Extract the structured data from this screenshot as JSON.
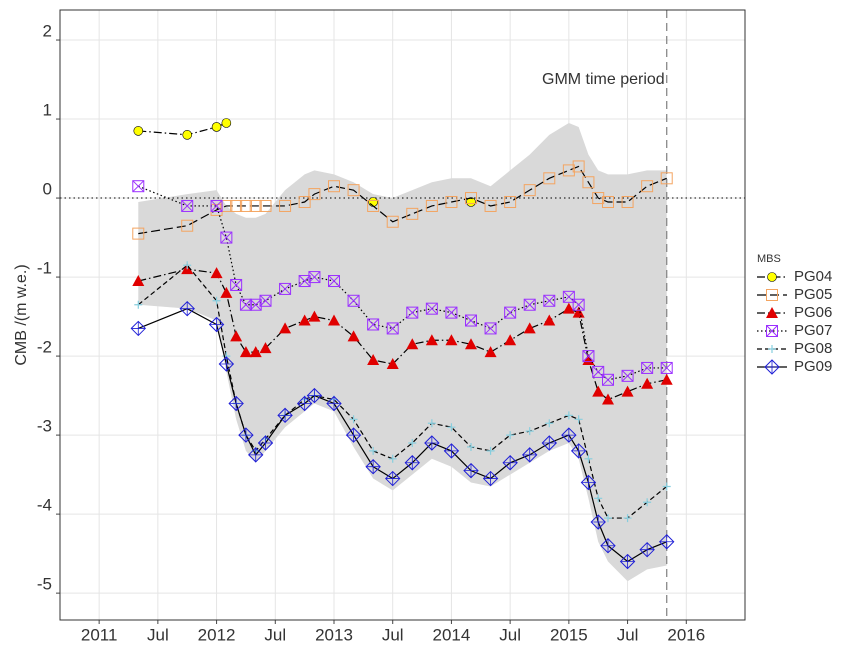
{
  "chart_data": {
    "type": "line",
    "y_label": "CMB /(m w.e.)",
    "legend_title": "MBS",
    "legend_position": "right",
    "x": [
      "2011-05",
      "2011-10",
      "2012-01",
      "2012-02",
      "2012-03",
      "2012-04",
      "2012-05",
      "2012-06",
      "2012-08",
      "2012-10",
      "2012-11",
      "2013-01",
      "2013-03",
      "2013-05",
      "2013-07",
      "2013-09",
      "2013-11",
      "2014-01",
      "2014-03",
      "2014-05",
      "2014-07",
      "2014-09",
      "2014-11",
      "2015-01",
      "2015-02",
      "2015-03",
      "2015-04",
      "2015-05",
      "2015-07",
      "2015-09",
      "2015-11"
    ],
    "band": {
      "color": "#d9d9d9",
      "upper": [
        -0.05,
        0.05,
        0.1,
        -0.1,
        -0.2,
        -0.25,
        -0.25,
        -0.2,
        0.1,
        0.3,
        0.35,
        0.3,
        0.2,
        0.05,
        0.0,
        0.1,
        0.2,
        0.25,
        0.25,
        0.15,
        0.35,
        0.55,
        0.8,
        0.95,
        0.9,
        0.55,
        0.35,
        0.3,
        0.3,
        0.35,
        0.35
      ],
      "lower": [
        -1.35,
        -1.4,
        -1.55,
        -2.2,
        -2.8,
        -3.2,
        -3.35,
        -3.2,
        -2.9,
        -2.7,
        -2.6,
        -2.7,
        -3.15,
        -3.55,
        -3.7,
        -3.5,
        -3.3,
        -3.4,
        -3.6,
        -3.65,
        -3.5,
        -3.35,
        -3.2,
        -3.1,
        -3.3,
        -3.8,
        -4.35,
        -4.6,
        -4.85,
        -4.7,
        -4.65
      ]
    },
    "series": [
      {
        "name": "PG04",
        "color": "#ffff00",
        "dash": "dashdot",
        "marker": "circle",
        "values": [
          0.85,
          0.8,
          0.9,
          0.95,
          null,
          null,
          null,
          null,
          null,
          null,
          null,
          null,
          null,
          -0.05,
          null,
          null,
          null,
          null,
          -0.05,
          null,
          null,
          null,
          null,
          null,
          null,
          null,
          null,
          null,
          null,
          null,
          null
        ]
      },
      {
        "name": "PG05",
        "color": "#f4a460",
        "dash": "longdash",
        "marker": "square",
        "values": [
          -0.45,
          -0.35,
          -0.15,
          -0.1,
          -0.1,
          -0.1,
          -0.1,
          -0.1,
          -0.1,
          -0.05,
          0.05,
          0.15,
          0.1,
          -0.1,
          -0.3,
          -0.2,
          -0.1,
          -0.05,
          0.0,
          -0.1,
          -0.05,
          0.1,
          0.25,
          0.35,
          0.4,
          0.2,
          0.0,
          -0.05,
          -0.05,
          0.15,
          0.25
        ]
      },
      {
        "name": "PG06",
        "color": "#e00000",
        "dash": "dashdot",
        "marker": "triangle",
        "values": [
          -1.05,
          -0.9,
          -0.95,
          -1.2,
          -1.75,
          -1.95,
          -1.95,
          -1.9,
          -1.65,
          -1.55,
          -1.5,
          -1.55,
          -1.75,
          -2.05,
          -2.1,
          -1.85,
          -1.8,
          -1.8,
          -1.85,
          -1.95,
          -1.8,
          -1.65,
          -1.55,
          -1.4,
          -1.45,
          -2.05,
          -2.45,
          -2.55,
          -2.45,
          -2.35,
          -2.3
        ]
      },
      {
        "name": "PG07",
        "color": "#9b30ff",
        "dash": "dotted",
        "marker": "squarex",
        "values": [
          0.15,
          -0.1,
          -0.1,
          -0.5,
          -1.1,
          -1.35,
          -1.35,
          -1.3,
          -1.15,
          -1.05,
          -1.0,
          -1.05,
          -1.3,
          -1.6,
          -1.65,
          -1.45,
          -1.4,
          -1.45,
          -1.55,
          -1.65,
          -1.45,
          -1.35,
          -1.3,
          -1.25,
          -1.35,
          -2.0,
          -2.2,
          -2.3,
          -2.25,
          -2.15,
          -2.15
        ]
      },
      {
        "name": "PG08",
        "color": "#87cede",
        "dash": "dashed",
        "marker": "plus",
        "values": [
          -1.35,
          -0.85,
          -1.3,
          -2.0,
          -2.6,
          -3.0,
          -3.2,
          -3.05,
          -2.75,
          -2.55,
          -2.5,
          -2.55,
          -2.8,
          -3.2,
          -3.3,
          -3.1,
          -2.85,
          -2.9,
          -3.15,
          -3.2,
          -3.0,
          -2.95,
          -2.85,
          -2.75,
          -2.8,
          -3.3,
          -3.8,
          -4.05,
          -4.05,
          -3.85,
          -3.65
        ]
      },
      {
        "name": "PG09",
        "color": "#1f1fd6",
        "dash": "solid",
        "marker": "diamond",
        "values": [
          -1.65,
          -1.4,
          -1.6,
          -2.1,
          -2.6,
          -3.0,
          -3.25,
          -3.1,
          -2.75,
          -2.6,
          -2.5,
          -2.6,
          -3.0,
          -3.4,
          -3.55,
          -3.35,
          -3.1,
          -3.2,
          -3.45,
          -3.55,
          -3.35,
          -3.25,
          -3.1,
          -3.0,
          -3.2,
          -3.6,
          -4.1,
          -4.4,
          -4.6,
          -4.45,
          -4.35
        ]
      }
    ],
    "hline": 0,
    "vline": {
      "x": "2015-11",
      "label": "GMM time period"
    },
    "xlim": [
      "2010-09",
      "2016-07"
    ],
    "xticks": [
      {
        "value": "2011-01",
        "label": "2011"
      },
      {
        "value": "2011-07",
        "label": "Jul"
      },
      {
        "value": "2012-01",
        "label": "2012"
      },
      {
        "value": "2012-07",
        "label": "Jul"
      },
      {
        "value": "2013-01",
        "label": "2013"
      },
      {
        "value": "2013-07",
        "label": "Jul"
      },
      {
        "value": "2014-01",
        "label": "2014"
      },
      {
        "value": "2014-07",
        "label": "Jul"
      },
      {
        "value": "2015-01",
        "label": "2015"
      },
      {
        "value": "2015-07",
        "label": "Jul"
      },
      {
        "value": "2016-01",
        "label": "2016"
      }
    ],
    "ylim": [
      -5.34,
      2.38
    ],
    "yticks": [
      -5,
      -4,
      -3,
      -2,
      -1,
      0,
      1,
      2
    ],
    "grid": true
  }
}
